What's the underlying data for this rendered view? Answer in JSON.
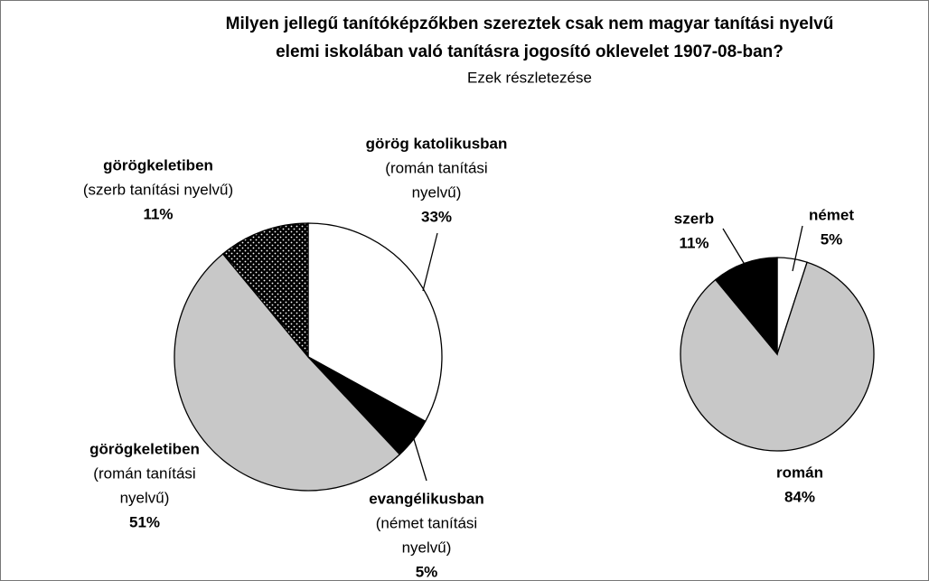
{
  "chart_data": [
    {
      "type": "pie",
      "title": [
        "Milyen jellegű tanítóképzőkben szereztek csak nem magyar tanítási nyelvű",
        "elemi iskolában való tanításra jogosító oklevelet 1907-08-ban?"
      ],
      "subtitle": "Ezek részletezése",
      "categories": [
        "görög katolikusban",
        "evangélikusban",
        "görögkeletiben",
        "görögkeletiben"
      ],
      "descriptions": [
        [
          "(román tanítási",
          "nyelvű)"
        ],
        [
          "(német tanítási",
          "nyelvű)"
        ],
        [
          "(román tanítási",
          "nyelvű)"
        ],
        [
          "(szerb tanítási nyelvű)"
        ]
      ],
      "values": [
        33,
        5,
        51,
        11
      ],
      "value_labels": [
        "33%",
        "5%",
        "51%",
        "11%"
      ],
      "colors": [
        "#ffffff",
        "#000000",
        "#c8c8c8",
        "dots"
      ]
    },
    {
      "type": "pie",
      "categories": [
        "német",
        "román",
        "szerb"
      ],
      "values": [
        5,
        84,
        11
      ],
      "value_labels": [
        "5%",
        "84%",
        "11%"
      ],
      "colors": [
        "#ffffff",
        "#c8c8c8",
        "#000000"
      ]
    }
  ]
}
